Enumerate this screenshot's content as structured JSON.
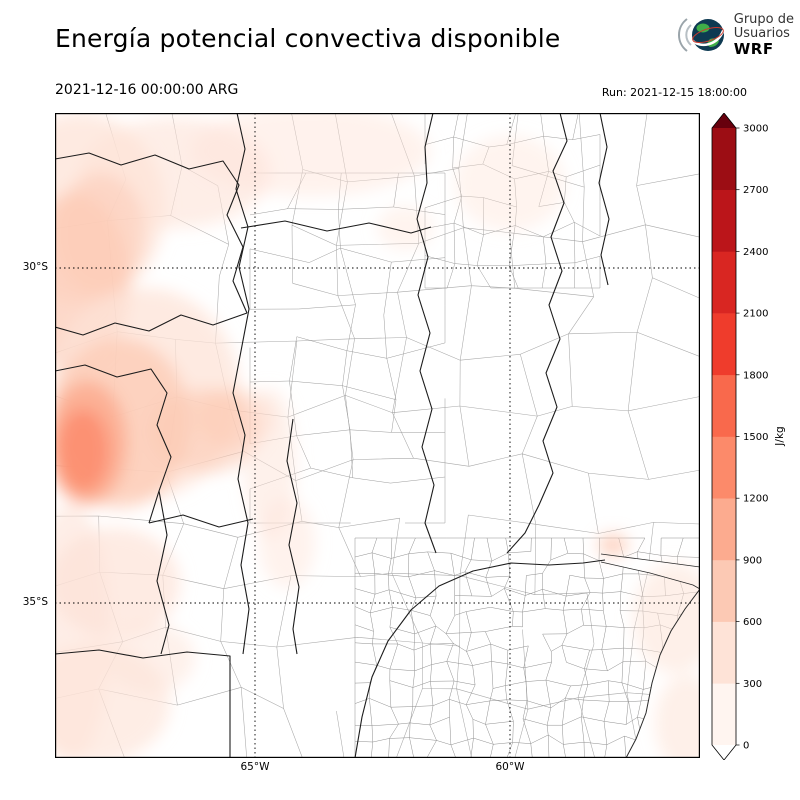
{
  "header": {
    "title": "Energía potencial convectiva disponible",
    "valid_time": "2021-12-16 00:00:00 ARG",
    "run_label": "Run: 2021-12-15 18:00:00",
    "logo": {
      "line1": "Grupo de",
      "line2": "Usuarios",
      "line3": "WRF"
    }
  },
  "map": {
    "lat_gridlines": [
      {
        "label": "30°S",
        "frac": 0.2403
      },
      {
        "label": "35°S",
        "frac": 0.7597
      }
    ],
    "lon_gridlines": [
      {
        "label": "65°W",
        "frac": 0.3101
      },
      {
        "label": "60°W",
        "frac": 0.7054
      }
    ]
  },
  "colorbar": {
    "units": "J/kg",
    "ticks": [
      0,
      300,
      600,
      900,
      1200,
      1500,
      1800,
      2100,
      2400,
      2700,
      3000
    ],
    "colors": [
      "#fff5f0",
      "#fee3d7",
      "#fcc9b4",
      "#fcab8f",
      "#fc8a6a",
      "#f9694c",
      "#ef3c2c",
      "#d92622",
      "#bb151a",
      "#9c0d14"
    ],
    "over_color": "#67000d",
    "under_color": "#ffffff"
  }
}
